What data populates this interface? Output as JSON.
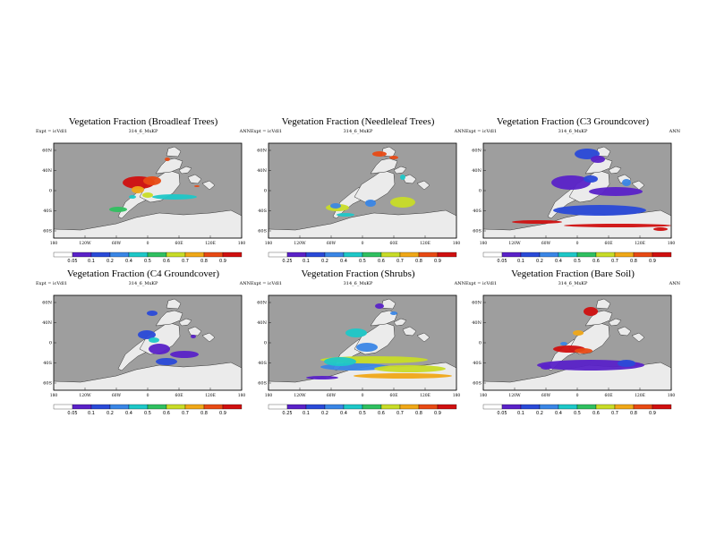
{
  "chart_data": [
    {
      "type": "heatmap",
      "title": "Vegetation Fraction (Broadleaf Trees)",
      "subtitle_left": "Expt = icVdl1",
      "subtitle_center": "314_6_MxKP",
      "subtitle_right": "ANN",
      "yticks": [
        "60N",
        "40N",
        "0",
        "40S",
        "60S"
      ],
      "xticks": [
        "180",
        "120W",
        "60W",
        "0",
        "60E",
        "120E",
        "180"
      ],
      "colorbar_labels": [
        "0.05",
        "0.1",
        "0.2",
        "0.4",
        "0.5",
        "0.6",
        "0.7",
        "0.8",
        "0.9"
      ]
    },
    {
      "type": "heatmap",
      "title": "Vegetation Fraction (Needleleaf Trees)",
      "subtitle_left": "Expt = icVdl1",
      "subtitle_center": "314_6_MxKP",
      "subtitle_right": "ANN",
      "yticks": [
        "60N",
        "40N",
        "0",
        "40S",
        "60S"
      ],
      "xticks": [
        "180",
        "120W",
        "60W",
        "0",
        "60E",
        "120E",
        "180"
      ],
      "colorbar_labels": [
        "0.25",
        "0.1",
        "0.2",
        "0.4",
        "0.5",
        "0.6",
        "0.7",
        "0.8",
        "0.9"
      ]
    },
    {
      "type": "heatmap",
      "title": "Vegetation Fraction (C3 Groundcover)",
      "subtitle_left": "Expt = icVdl1",
      "subtitle_center": "314_6_MxKP",
      "subtitle_right": "ANN",
      "yticks": [
        "60N",
        "40N",
        "0",
        "40S",
        "60S"
      ],
      "xticks": [
        "180",
        "120W",
        "60W",
        "0",
        "60E",
        "120E",
        "180"
      ],
      "colorbar_labels": [
        "0.05",
        "0.1",
        "0.2",
        "0.4",
        "0.5",
        "0.6",
        "0.7",
        "0.8",
        "0.9"
      ]
    },
    {
      "type": "heatmap",
      "title": "Vegetation Fraction (C4 Groundcover)",
      "subtitle_left": "Expt = icVdl1",
      "subtitle_center": "314_6_MxKP",
      "subtitle_right": "ANN",
      "yticks": [
        "60N",
        "40N",
        "0",
        "40S",
        "60S"
      ],
      "xticks": [
        "180",
        "120W",
        "60W",
        "0",
        "60E",
        "120E",
        "180"
      ],
      "colorbar_labels": [
        "0.05",
        "0.1",
        "0.2",
        "0.4",
        "0.5",
        "0.6",
        "0.7",
        "0.8",
        "0.9"
      ]
    },
    {
      "type": "heatmap",
      "title": "Vegetation Fraction (Shrubs)",
      "subtitle_left": "Expt = icVdl1",
      "subtitle_center": "314_6_MxKP",
      "subtitle_right": "ANN",
      "yticks": [
        "60N",
        "40N",
        "0",
        "40S",
        "60S"
      ],
      "xticks": [
        "180",
        "120W",
        "60W",
        "0",
        "60E",
        "120E",
        "180"
      ],
      "colorbar_labels": [
        "0.25",
        "0.1",
        "0.2",
        "0.4",
        "0.5",
        "0.6",
        "0.7",
        "0.8",
        "0.9"
      ]
    },
    {
      "type": "heatmap",
      "title": "Vegetation Fraction (Bare Soil)",
      "subtitle_left": "Expt = icVdl1",
      "subtitle_center": "314_6_MxKP",
      "subtitle_right": "ANN",
      "yticks": [
        "60N",
        "40N",
        "0",
        "40S",
        "60S"
      ],
      "xticks": [
        "180",
        "120W",
        "60W",
        "0",
        "60E",
        "120E",
        "180"
      ],
      "colorbar_labels": [
        "0.05",
        "0.1",
        "0.2",
        "0.4",
        "0.5",
        "0.6",
        "0.7",
        "0.8",
        "0.9"
      ]
    }
  ],
  "colors": {
    "ocean": "#9e9e9e",
    "land": "#ebebeb",
    "scale": [
      "#ffffff",
      "#5a22c8",
      "#2a4ad8",
      "#3a86e6",
      "#1ec8c8",
      "#30c060",
      "#c8dc28",
      "#f0a818",
      "#e84a14",
      "#d01010"
    ]
  }
}
